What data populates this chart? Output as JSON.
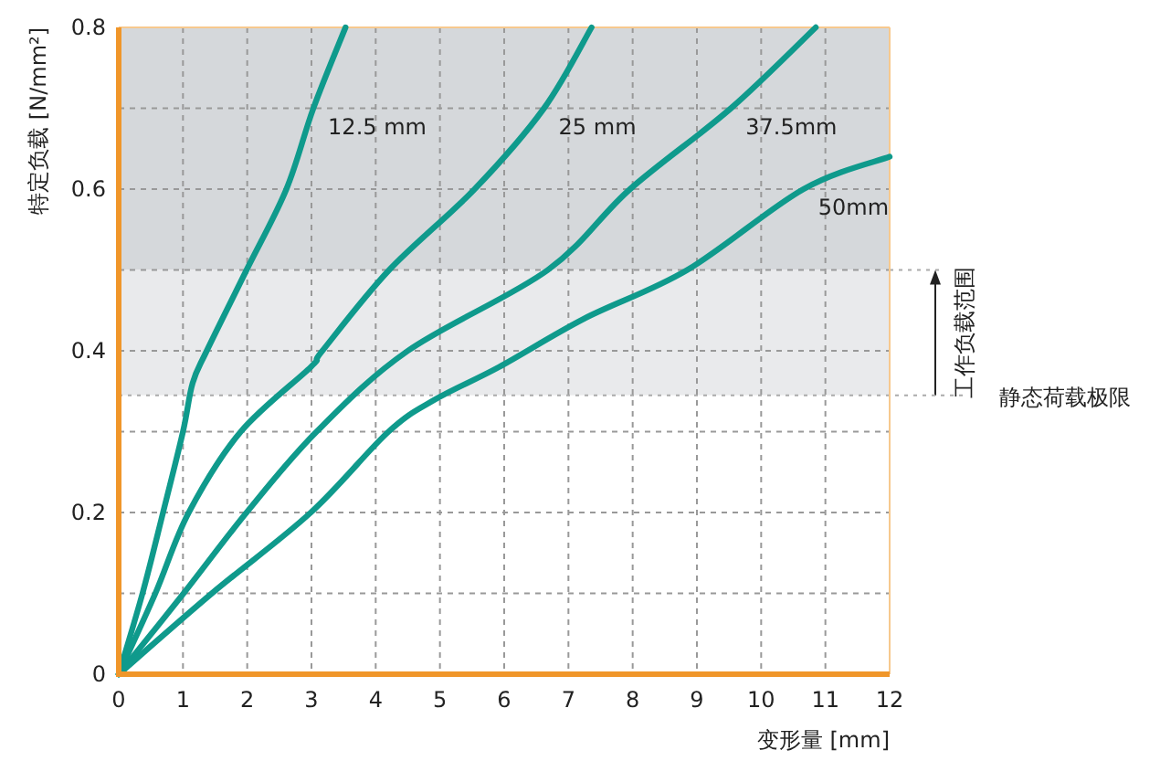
{
  "chart_data": {
    "type": "line",
    "xlabel": "变形量 [mm]",
    "ylabel": "特定负载 [N/mm²]",
    "xlim": [
      0,
      12
    ],
    "ylim": [
      0,
      0.8
    ],
    "xticks": [
      0,
      1,
      2,
      3,
      4,
      5,
      6,
      7,
      8,
      9,
      10,
      11,
      12
    ],
    "yticks": [
      0,
      {
        "value": 0.1,
        "label": null
      },
      0.2,
      {
        "value": 0.3,
        "label": null
      },
      0.4,
      {
        "value": 0.5,
        "label": null
      },
      0.6,
      {
        "value": 0.7,
        "label": null
      },
      0.8
    ],
    "grid": true,
    "marker": "none",
    "line_style": "solid",
    "series": [
      {
        "name": "12.5 mm",
        "color": "#0f9a8c",
        "x": [
          0,
          0.37,
          0.69,
          1.0,
          1.15,
          1.37,
          1.99,
          2.61,
          3.03,
          3.53
        ],
        "values": [
          0,
          0.1,
          0.2,
          0.3,
          0.36,
          0.4,
          0.5,
          0.6,
          0.7,
          0.8
        ]
      },
      {
        "name": "25 mm",
        "color": "#0f9a8c",
        "x": [
          0,
          0.57,
          1.09,
          1.9,
          2.99,
          3.17,
          4.21,
          5.54,
          6.62,
          7.36
        ],
        "values": [
          0,
          0.1,
          0.2,
          0.3,
          0.38,
          0.4,
          0.5,
          0.6,
          0.7,
          0.8
        ]
      },
      {
        "name": "37.5mm",
        "color": "#0f9a8c",
        "x": [
          0,
          1.01,
          1.99,
          3.08,
          4.5,
          6.68,
          7.96,
          9.53,
          10.85
        ],
        "values": [
          0,
          0.1,
          0.2,
          0.3,
          0.4,
          0.5,
          0.6,
          0.7,
          0.8
        ]
      },
      {
        "name": "50mm",
        "color": "#0f9a8c",
        "x": [
          0,
          1.45,
          2.99,
          4.2,
          4.93,
          5.92,
          7.25,
          8.85,
          10.66,
          12
        ],
        "values": [
          0,
          0.1,
          0.2,
          0.3,
          0.34,
          0.38,
          0.44,
          0.5,
          0.6,
          0.64
        ]
      }
    ],
    "bands": [
      {
        "axis": "y",
        "from": 0.5,
        "to": 0.8,
        "color": "#d5d8db"
      },
      {
        "axis": "y",
        "from": 0.345,
        "to": 0.5,
        "color": "#e9eaec",
        "label": "工作负载范围"
      }
    ],
    "ref_lines": [
      {
        "axis": "y",
        "value": 0.345,
        "label": "静态荷载极限",
        "line_style": "dotted",
        "color": "#aaaaaa"
      }
    ]
  }
}
